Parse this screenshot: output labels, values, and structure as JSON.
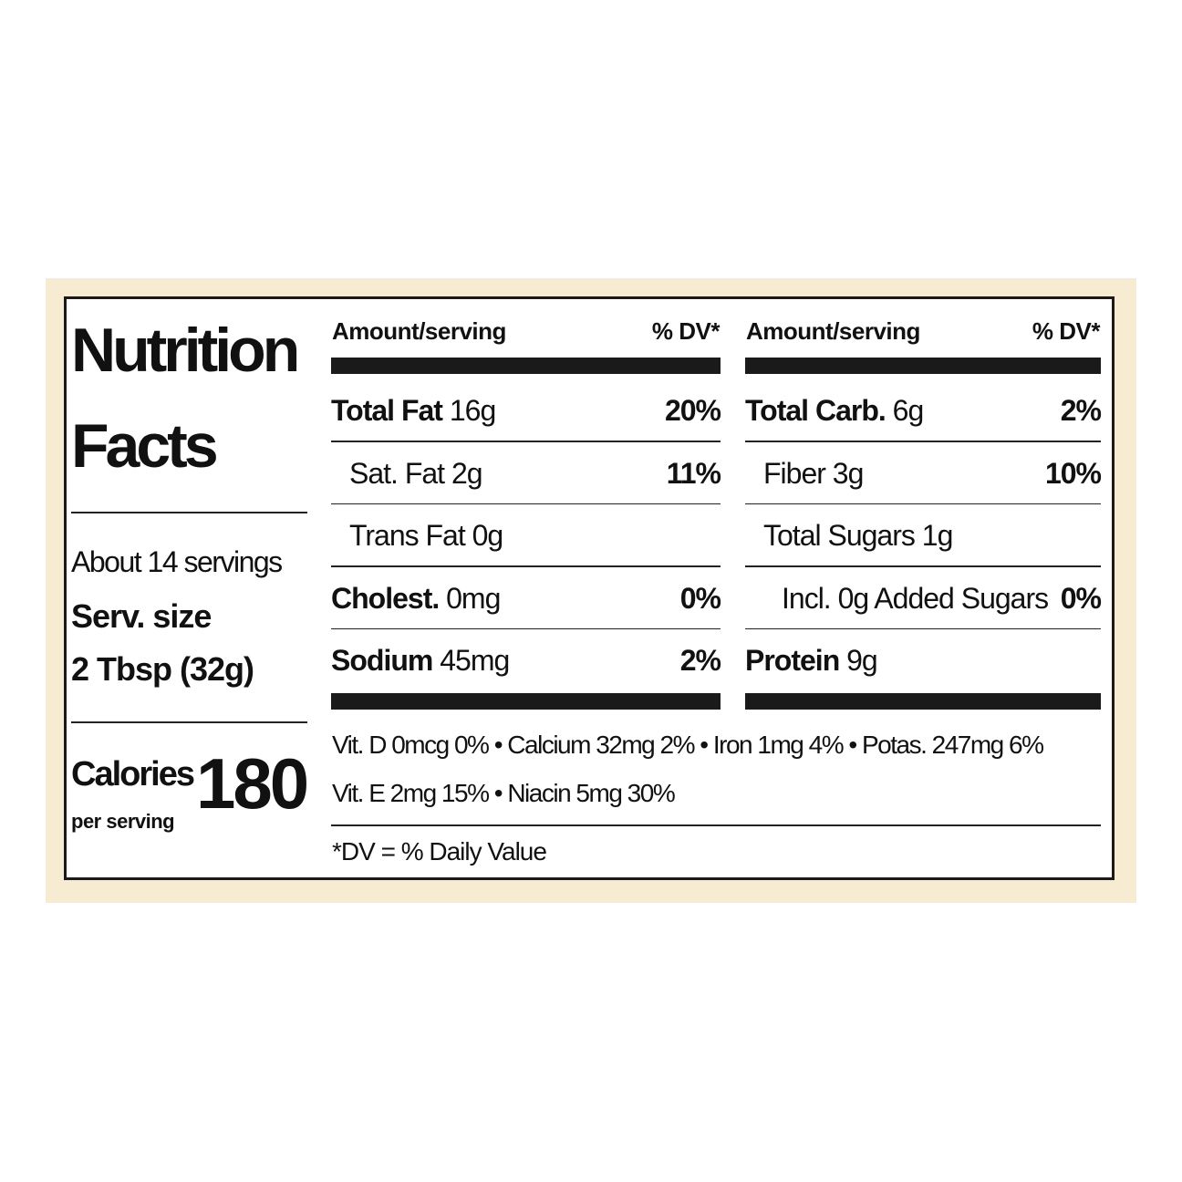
{
  "title_line1": "Nutrition",
  "title_line2": "Facts",
  "servings": "About 14 servings",
  "serv_size_label": "Serv. size",
  "serv_size_value": "2 Tbsp (32g)",
  "calories_label": "Calories",
  "per_serving": "per serving",
  "calories_value": "180",
  "left_table": {
    "header_amount": "Amount/serving",
    "header_dv": "% DV*",
    "rows": [
      {
        "name": "Total Fat",
        "amount": "16g",
        "dv": "20%",
        "bold": true,
        "indent": 0
      },
      {
        "name": "Sat. Fat",
        "amount": "2g",
        "dv": "11%",
        "bold": false,
        "indent": 1
      },
      {
        "name": "Trans Fat",
        "amount": "0g",
        "dv": "",
        "bold": false,
        "indent": 1
      },
      {
        "name": "Cholest.",
        "amount": "0mg",
        "dv": "0%",
        "bold": true,
        "indent": 0
      },
      {
        "name": "Sodium",
        "amount": "45mg",
        "dv": "2%",
        "bold": true,
        "indent": 0
      }
    ]
  },
  "right_table": {
    "header_amount": "Amount/serving",
    "header_dv": "% DV*",
    "rows": [
      {
        "name": "Total Carb.",
        "amount": "6g",
        "dv": "2%",
        "bold": true,
        "indent": 0
      },
      {
        "name": "Fiber",
        "amount": "3g",
        "dv": "10%",
        "bold": false,
        "indent": 1
      },
      {
        "name": "Total Sugars",
        "amount": "1g",
        "dv": "",
        "bold": false,
        "indent": 1
      },
      {
        "name": "Incl. 0g Added Sugars",
        "amount": "",
        "dv": "0%",
        "bold": false,
        "indent": 2
      },
      {
        "name": "Protein",
        "amount": "9g",
        "dv": "",
        "bold": true,
        "indent": 0
      }
    ]
  },
  "vitamins_line1": "Vit. D 0mcg 0% • Calcium 32mg 2% • Iron 1mg 4% • Potas. 247mg 6%",
  "vitamins_line2": "Vit. E 2mg 15% • Niacin 5mg 30%",
  "footnote": "*DV = % Daily Value",
  "colors": {
    "frame": "#f7ecd2",
    "ink": "#1a1a1a"
  }
}
